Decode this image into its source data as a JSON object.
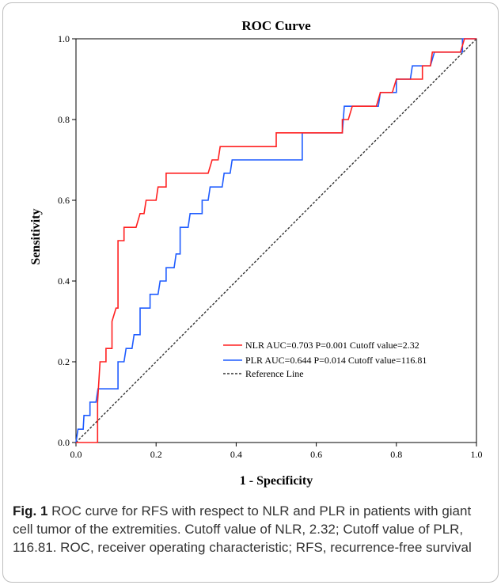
{
  "chart_data": {
    "type": "line",
    "title": "ROC Curve",
    "xlabel": "1 - Specificity",
    "ylabel": "Sensitivity",
    "xlim": [
      0.0,
      1.0
    ],
    "ylim": [
      0.0,
      1.0
    ],
    "x_ticks": [
      "0.0",
      "0.2",
      "0.4",
      "0.6",
      "0.8",
      "1.0"
    ],
    "y_ticks": [
      "0.0",
      "0.2",
      "0.4",
      "0.6",
      "0.8",
      "1.0"
    ],
    "grid": false,
    "legend_position": "bottom-right",
    "series": [
      {
        "name": "NLR AUC=0.703 P=0.001 Cutoff value=2.32",
        "color": "#ff2020",
        "points": [
          [
            0.0,
            0.0
          ],
          [
            0.054,
            0.0
          ],
          [
            0.054,
            0.1
          ],
          [
            0.06,
            0.2
          ],
          [
            0.075,
            0.2
          ],
          [
            0.075,
            0.233
          ],
          [
            0.09,
            0.233
          ],
          [
            0.09,
            0.3
          ],
          [
            0.1,
            0.333
          ],
          [
            0.105,
            0.333
          ],
          [
            0.105,
            0.5
          ],
          [
            0.12,
            0.5
          ],
          [
            0.12,
            0.533
          ],
          [
            0.15,
            0.533
          ],
          [
            0.16,
            0.567
          ],
          [
            0.17,
            0.567
          ],
          [
            0.175,
            0.6
          ],
          [
            0.2,
            0.6
          ],
          [
            0.205,
            0.633
          ],
          [
            0.225,
            0.633
          ],
          [
            0.225,
            0.667
          ],
          [
            0.33,
            0.667
          ],
          [
            0.34,
            0.7
          ],
          [
            0.355,
            0.7
          ],
          [
            0.36,
            0.733
          ],
          [
            0.5,
            0.733
          ],
          [
            0.5,
            0.767
          ],
          [
            0.665,
            0.767
          ],
          [
            0.665,
            0.8
          ],
          [
            0.68,
            0.8
          ],
          [
            0.69,
            0.833
          ],
          [
            0.75,
            0.833
          ],
          [
            0.76,
            0.867
          ],
          [
            0.79,
            0.867
          ],
          [
            0.8,
            0.9
          ],
          [
            0.865,
            0.9
          ],
          [
            0.865,
            0.933
          ],
          [
            0.885,
            0.933
          ],
          [
            0.89,
            0.967
          ],
          [
            0.96,
            0.967
          ],
          [
            0.97,
            1.0
          ],
          [
            1.0,
            1.0
          ]
        ]
      },
      {
        "name": "PLR AUC=0.644 P=0.014 Cutoff value=116.81",
        "color": "#1f5cff",
        "points": [
          [
            0.0,
            0.0
          ],
          [
            0.005,
            0.033
          ],
          [
            0.018,
            0.033
          ],
          [
            0.02,
            0.067
          ],
          [
            0.035,
            0.067
          ],
          [
            0.035,
            0.1
          ],
          [
            0.05,
            0.1
          ],
          [
            0.055,
            0.133
          ],
          [
            0.105,
            0.133
          ],
          [
            0.105,
            0.2
          ],
          [
            0.12,
            0.2
          ],
          [
            0.125,
            0.233
          ],
          [
            0.14,
            0.233
          ],
          [
            0.145,
            0.267
          ],
          [
            0.16,
            0.267
          ],
          [
            0.16,
            0.333
          ],
          [
            0.185,
            0.333
          ],
          [
            0.185,
            0.367
          ],
          [
            0.205,
            0.367
          ],
          [
            0.21,
            0.4
          ],
          [
            0.225,
            0.4
          ],
          [
            0.225,
            0.433
          ],
          [
            0.245,
            0.433
          ],
          [
            0.25,
            0.467
          ],
          [
            0.26,
            0.467
          ],
          [
            0.26,
            0.533
          ],
          [
            0.28,
            0.533
          ],
          [
            0.285,
            0.567
          ],
          [
            0.315,
            0.567
          ],
          [
            0.315,
            0.6
          ],
          [
            0.33,
            0.6
          ],
          [
            0.335,
            0.633
          ],
          [
            0.365,
            0.633
          ],
          [
            0.37,
            0.667
          ],
          [
            0.385,
            0.667
          ],
          [
            0.39,
            0.7
          ],
          [
            0.565,
            0.7
          ],
          [
            0.565,
            0.767
          ],
          [
            0.665,
            0.767
          ],
          [
            0.67,
            0.833
          ],
          [
            0.755,
            0.833
          ],
          [
            0.76,
            0.867
          ],
          [
            0.8,
            0.867
          ],
          [
            0.8,
            0.9
          ],
          [
            0.835,
            0.9
          ],
          [
            0.84,
            0.933
          ],
          [
            0.885,
            0.933
          ],
          [
            0.895,
            0.967
          ],
          [
            0.965,
            0.967
          ],
          [
            0.965,
            1.0
          ],
          [
            1.0,
            1.0
          ]
        ]
      },
      {
        "name": "Reference Line",
        "color": "#333333",
        "style": "dashed",
        "points": [
          [
            0.0,
            0.0
          ],
          [
            1.0,
            1.0
          ]
        ]
      }
    ]
  },
  "caption": {
    "label": "Fig. 1",
    "text": " ROC curve for RFS with respect to NLR and PLR in patients with giant cell tumor of the extremities. Cutoff value of NLR, 2.32; Cutoff value of PLR, 116.81. ROC, receiver operating characteristic; RFS, recurrence-free survival"
  }
}
